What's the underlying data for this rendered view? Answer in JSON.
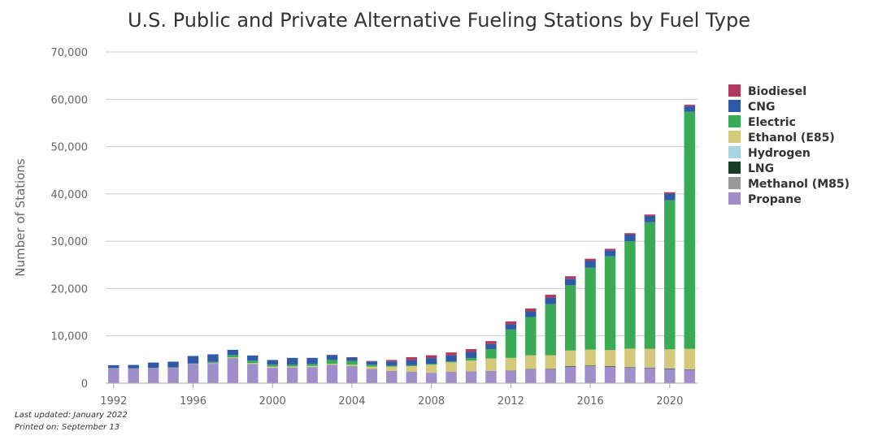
{
  "footer": {
    "updated": "Last updated: January 2022",
    "printed": "Printed on: September 13"
  },
  "chart_data": {
    "type": "bar",
    "stacked": true,
    "title": "U.S. Public and Private Alternative Fueling Stations by Fuel Type",
    "xlabel": "",
    "ylabel": "Number of Stations",
    "ylim": [
      0,
      70000
    ],
    "yticks": [
      "0",
      "10,000",
      "20,000",
      "30,000",
      "40,000",
      "50,000",
      "60,000",
      "70,000"
    ],
    "xticks": [
      "1992",
      "1996",
      "2000",
      "2004",
      "2008",
      "2012",
      "2016",
      "2020"
    ],
    "grid": true,
    "legend_position": "right",
    "categories": [
      1992,
      1993,
      1994,
      1995,
      1996,
      1997,
      1998,
      1999,
      2000,
      2001,
      2002,
      2003,
      2004,
      2005,
      2006,
      2007,
      2008,
      2009,
      2010,
      2011,
      2012,
      2013,
      2014,
      2015,
      2016,
      2017,
      2018,
      2019,
      2020,
      2021
    ],
    "series": [
      {
        "name": "Propane",
        "color": "#9e8ec9",
        "values": [
          3100,
          3000,
          3100,
          3200,
          4000,
          4100,
          5200,
          4000,
          3200,
          3300,
          3400,
          3900,
          3600,
          3000,
          2600,
          2400,
          2200,
          2400,
          2500,
          2600,
          2600,
          2900,
          2900,
          3500,
          3600,
          3500,
          3300,
          3200,
          3000,
          2800
        ]
      },
      {
        "name": "Methanol (M85)",
        "color": "#999999",
        "values": [
          100,
          150,
          150,
          150,
          150,
          150,
          150,
          100,
          100,
          50,
          50,
          0,
          0,
          0,
          0,
          0,
          0,
          0,
          0,
          0,
          0,
          0,
          0,
          0,
          0,
          0,
          0,
          0,
          0,
          0
        ]
      },
      {
        "name": "LNG",
        "color": "#1a3d28",
        "values": [
          0,
          0,
          0,
          0,
          0,
          0,
          0,
          0,
          0,
          0,
          0,
          0,
          0,
          0,
          0,
          0,
          0,
          0,
          0,
          0,
          50,
          80,
          90,
          100,
          100,
          100,
          100,
          100,
          100,
          100
        ]
      },
      {
        "name": "Hydrogen",
        "color": "#a9d5e3",
        "values": [
          0,
          0,
          0,
          0,
          0,
          0,
          0,
          0,
          0,
          0,
          0,
          0,
          0,
          0,
          0,
          0,
          0,
          0,
          0,
          0,
          0,
          0,
          0,
          0,
          0,
          0,
          0,
          50,
          50,
          50
        ]
      },
      {
        "name": "Ethanol (E85)",
        "color": "#d4c87a",
        "values": [
          0,
          0,
          0,
          0,
          0,
          50,
          100,
          150,
          200,
          200,
          200,
          200,
          300,
          500,
          900,
          1200,
          1700,
          2000,
          2300,
          2600,
          2700,
          2900,
          2900,
          3300,
          3400,
          3400,
          3900,
          3900,
          4000,
          4300
        ]
      },
      {
        "name": "Electric",
        "color": "#3aaa55",
        "values": [
          0,
          0,
          0,
          0,
          0,
          200,
          500,
          500,
          400,
          400,
          400,
          800,
          800,
          400,
          200,
          200,
          200,
          200,
          500,
          2000,
          6000,
          8100,
          10800,
          13800,
          17300,
          19800,
          22700,
          26800,
          31500,
          50100
        ]
      },
      {
        "name": "CNG",
        "color": "#2e5aa8",
        "values": [
          600,
          700,
          1100,
          1200,
          1600,
          1600,
          1100,
          1100,
          1000,
          1400,
          1300,
          1000,
          700,
          700,
          900,
          1100,
          1200,
          1300,
          1300,
          1100,
          1100,
          1200,
          1400,
          1400,
          1500,
          1300,
          1400,
          1300,
          1400,
          1200
        ]
      },
      {
        "name": "Biodiesel",
        "color": "#b33a5a",
        "values": [
          0,
          0,
          0,
          0,
          0,
          0,
          0,
          0,
          0,
          0,
          0,
          100,
          100,
          100,
          300,
          600,
          600,
          600,
          600,
          600,
          600,
          600,
          600,
          500,
          400,
          300,
          300,
          300,
          300,
          300
        ]
      }
    ],
    "legend_order": [
      "Biodiesel",
      "CNG",
      "Electric",
      "Ethanol (E85)",
      "Hydrogen",
      "LNG",
      "Methanol (M85)",
      "Propane"
    ]
  }
}
